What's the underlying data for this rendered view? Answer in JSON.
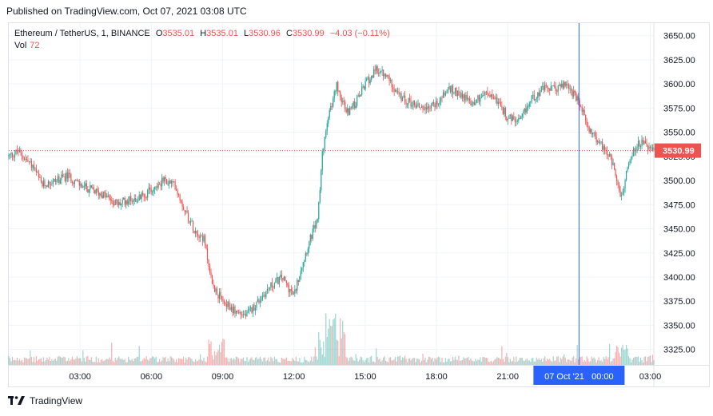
{
  "header": {
    "published": "Published on TradingView.com, Oct 07, 2021 03:08 UTC"
  },
  "legend": {
    "symbol": "Ethereum / TetherUS, 1, BINANCE",
    "o_label": "O",
    "o_value": "3535.01",
    "h_label": "H",
    "h_value": "3535.01",
    "l_label": "L",
    "l_value": "3530.96",
    "c_label": "C",
    "c_value": "3530.99",
    "change": "−4.03 (−0.11%)",
    "vol_label": "Vol",
    "vol_value": "72"
  },
  "footer": {
    "brand": "TradingView"
  },
  "colors": {
    "up": "#26a69a",
    "down": "#ef5350",
    "crosshair": "#2962ff",
    "price_line": "#ef5350"
  },
  "chart_data": {
    "type": "candlestick",
    "y_axis_side": "right",
    "ylim": [
      3309,
      3663
    ],
    "y_ticks": [
      "3650.00",
      "3625.00",
      "3600.00",
      "3575.00",
      "3550.00",
      "3525.00",
      "3500.00",
      "3475.00",
      "3450.00",
      "3425.00",
      "3400.00",
      "3375.00",
      "3350.00",
      "3325.00"
    ],
    "x_ticks": [
      "03:00",
      "06:00",
      "09:00",
      "12:00",
      "15:00",
      "18:00",
      "21:00",
      "03:00"
    ],
    "x_tick_hours": [
      3,
      6,
      9,
      12,
      15,
      18,
      21,
      27
    ],
    "x_range_hours": [
      0.0,
      27.15
    ],
    "crosshair_hour": 24.0,
    "crosshair_label": "07 Oct '21   00:00",
    "last_price": 3530.99,
    "last_price_label": "3530.99",
    "approx_close_path": [
      {
        "h": 0.0,
        "p": 3525
      },
      {
        "h": 0.4,
        "p": 3530
      },
      {
        "h": 1.0,
        "p": 3515
      },
      {
        "h": 1.4,
        "p": 3495
      },
      {
        "h": 2.0,
        "p": 3500
      },
      {
        "h": 2.5,
        "p": 3505
      },
      {
        "h": 3.0,
        "p": 3495
      },
      {
        "h": 3.5,
        "p": 3490
      },
      {
        "h": 4.0,
        "p": 3485
      },
      {
        "h": 4.6,
        "p": 3475
      },
      {
        "h": 5.0,
        "p": 3480
      },
      {
        "h": 5.5,
        "p": 3482
      },
      {
        "h": 6.0,
        "p": 3490
      },
      {
        "h": 6.5,
        "p": 3500
      },
      {
        "h": 7.0,
        "p": 3495
      },
      {
        "h": 7.4,
        "p": 3470
      },
      {
        "h": 7.8,
        "p": 3450
      },
      {
        "h": 8.2,
        "p": 3440
      },
      {
        "h": 8.6,
        "p": 3390
      },
      {
        "h": 9.0,
        "p": 3375
      },
      {
        "h": 9.5,
        "p": 3365
      },
      {
        "h": 10.0,
        "p": 3360
      },
      {
        "h": 10.5,
        "p": 3375
      },
      {
        "h": 11.0,
        "p": 3390
      },
      {
        "h": 11.5,
        "p": 3400
      },
      {
        "h": 12.0,
        "p": 3380
      },
      {
        "h": 12.3,
        "p": 3410
      },
      {
        "h": 12.7,
        "p": 3440
      },
      {
        "h": 13.0,
        "p": 3460
      },
      {
        "h": 13.2,
        "p": 3530
      },
      {
        "h": 13.5,
        "p": 3570
      },
      {
        "h": 13.8,
        "p": 3600
      },
      {
        "h": 14.2,
        "p": 3570
      },
      {
        "h": 14.6,
        "p": 3580
      },
      {
        "h": 15.0,
        "p": 3600
      },
      {
        "h": 15.5,
        "p": 3615
      },
      {
        "h": 16.0,
        "p": 3605
      },
      {
        "h": 16.5,
        "p": 3585
      },
      {
        "h": 17.0,
        "p": 3580
      },
      {
        "h": 17.5,
        "p": 3575
      },
      {
        "h": 18.0,
        "p": 3580
      },
      {
        "h": 18.5,
        "p": 3595
      },
      {
        "h": 19.0,
        "p": 3590
      },
      {
        "h": 19.5,
        "p": 3580
      },
      {
        "h": 20.0,
        "p": 3590
      },
      {
        "h": 20.5,
        "p": 3585
      },
      {
        "h": 21.0,
        "p": 3565
      },
      {
        "h": 21.5,
        "p": 3560
      },
      {
        "h": 22.0,
        "p": 3585
      },
      {
        "h": 22.5,
        "p": 3595
      },
      {
        "h": 23.0,
        "p": 3595
      },
      {
        "h": 23.5,
        "p": 3600
      },
      {
        "h": 24.0,
        "p": 3580
      },
      {
        "h": 24.4,
        "p": 3555
      },
      {
        "h": 24.8,
        "p": 3540
      },
      {
        "h": 25.2,
        "p": 3530
      },
      {
        "h": 25.5,
        "p": 3510
      },
      {
        "h": 25.8,
        "p": 3480
      },
      {
        "h": 26.1,
        "p": 3520
      },
      {
        "h": 26.5,
        "p": 3540
      },
      {
        "h": 26.9,
        "p": 3535
      },
      {
        "h": 27.1,
        "p": 3531
      }
    ]
  }
}
